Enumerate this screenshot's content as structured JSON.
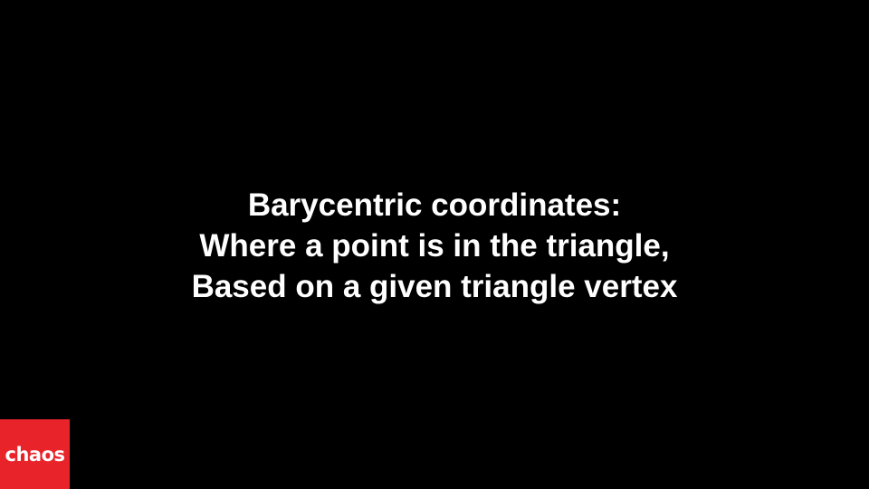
{
  "slide": {
    "title_lines": [
      "Barycentric coordinates:",
      "Where a point is in the triangle,",
      "Based on a given triangle vertex"
    ],
    "background_color": "#000000",
    "text_color": "#ffffff"
  },
  "logo": {
    "text": "chaos",
    "background_color": "#e8232a"
  }
}
